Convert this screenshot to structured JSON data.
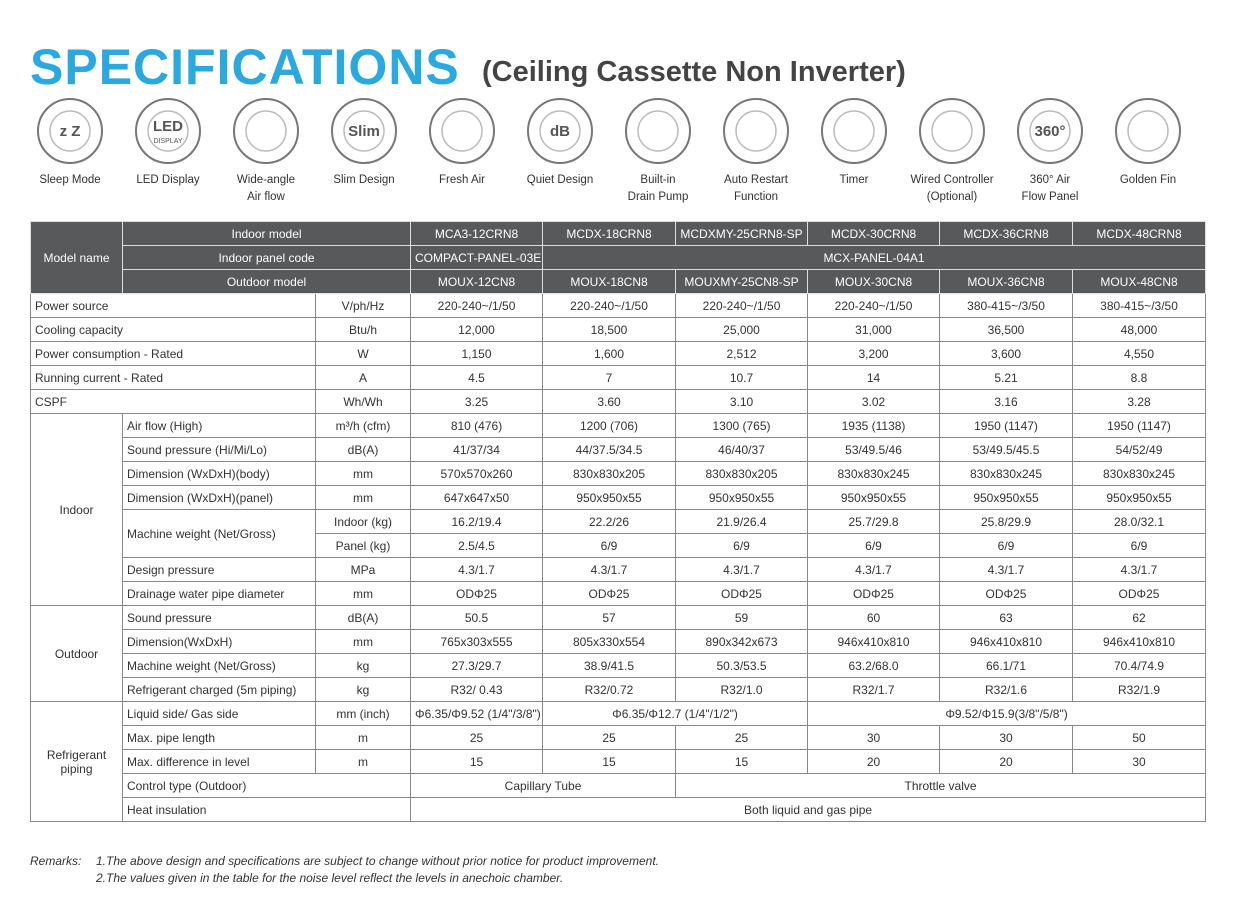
{
  "header": {
    "title": "SPECIFICATIONS",
    "subtitle": "(Ceiling Cassette Non Inverter)"
  },
  "features": [
    {
      "label": "Sleep Mode",
      "icon_text": "z Z"
    },
    {
      "label": "LED Display",
      "icon_text": "LED",
      "icon_subtext": "DISPLAY"
    },
    {
      "label": "Wide-angle\nAir flow"
    },
    {
      "label": "Slim Design",
      "icon_text": "Slim"
    },
    {
      "label": "Fresh Air"
    },
    {
      "label": "Quiet Design",
      "icon_text": "dB"
    },
    {
      "label": "Built-in\nDrain Pump"
    },
    {
      "label": "Auto Restart\nFunction"
    },
    {
      "label": "Timer"
    },
    {
      "label": "Wired Controller\n(Optional)"
    },
    {
      "label": "360° Air\nFlow Panel",
      "icon_text": "360°"
    },
    {
      "label": "Golden Fin"
    }
  ],
  "table": {
    "model_name": "Model name",
    "header_rows": [
      {
        "label": "Indoor model",
        "values": [
          "MCA3-12CRN8",
          "MCDX-18CRN8",
          "MCDXMY-25CRN8-SP",
          "MCDX-30CRN8",
          "MCDX-36CRN8",
          "MCDX-48CRN8"
        ]
      },
      {
        "label": "Indoor panel code",
        "values": [
          "COMPACT-PANEL-03E",
          "MCX-PANEL-04A1"
        ]
      },
      {
        "label": "Outdoor model",
        "values": [
          "MOUX-12CN8",
          "MOUX-18CN8",
          "MOUXMY-25CN8-SP",
          "MOUX-30CN8",
          "MOUX-36CN8",
          "MOUX-48CN8"
        ]
      }
    ],
    "general_rows": [
      {
        "label": "Power source",
        "unit": "V/ph/Hz",
        "values": [
          "220-240~/1/50",
          "220-240~/1/50",
          "220-240~/1/50",
          "220-240~/1/50",
          "380-415~/3/50",
          "380-415~/3/50"
        ]
      },
      {
        "label": "Cooling capacity",
        "unit": "Btu/h",
        "values": [
          "12,000",
          "18,500",
          "25,000",
          "31,000",
          "36,500",
          "48,000"
        ]
      },
      {
        "label": "Power consumption - Rated",
        "unit": "W",
        "values": [
          "1,150",
          "1,600",
          "2,512",
          "3,200",
          "3,600",
          "4,550"
        ]
      },
      {
        "label": "Running current - Rated",
        "unit": "A",
        "values": [
          "4.5",
          "7",
          "10.7",
          "14",
          "5.21",
          "8.8"
        ]
      },
      {
        "label": "CSPF",
        "unit": "Wh/Wh",
        "values": [
          "3.25",
          "3.60",
          "3.10",
          "3.02",
          "3.16",
          "3.28"
        ]
      }
    ],
    "groups": [
      {
        "name": "Indoor",
        "rows": [
          {
            "label": "Air flow (High)",
            "unit": "m³/h (cfm)",
            "values": [
              "810 (476)",
              "1200 (706)",
              "1300 (765)",
              "1935 (1138)",
              "1950 (1147)",
              "1950 (1147)"
            ]
          },
          {
            "label": "Sound pressure (Hi/Mi/Lo)",
            "unit": "dB(A)",
            "values": [
              "41/37/34",
              "44/37.5/34.5",
              "46/40/37",
              "53/49.5/46",
              "53/49.5/45.5",
              "54/52/49"
            ]
          },
          {
            "label": "Dimension (WxDxH)(body)",
            "unit": "mm",
            "values": [
              "570x570x260",
              "830x830x205",
              "830x830x205",
              "830x830x245",
              "830x830x245",
              "830x830x245"
            ]
          },
          {
            "label": "Dimension (WxDxH)(panel)",
            "unit": "mm",
            "values": [
              "647x647x50",
              "950x950x55",
              "950x950x55",
              "950x950x55",
              "950x950x55",
              "950x950x55"
            ]
          },
          {
            "label": "Machine weight (Net/Gross)",
            "subrows": [
              {
                "unit": "Indoor (kg)",
                "values": [
                  "16.2/19.4",
                  "22.2/26",
                  "21.9/26.4",
                  "25.7/29.8",
                  "25.8/29.9",
                  "28.0/32.1"
                ]
              },
              {
                "unit": "Panel (kg)",
                "values": [
                  "2.5/4.5",
                  "6/9",
                  "6/9",
                  "6/9",
                  "6/9",
                  "6/9"
                ]
              }
            ]
          },
          {
            "label": "Design pressure",
            "unit": "MPa",
            "values": [
              "4.3/1.7",
              "4.3/1.7",
              "4.3/1.7",
              "4.3/1.7",
              "4.3/1.7",
              "4.3/1.7"
            ]
          },
          {
            "label": "Drainage water pipe diameter",
            "unit": "mm",
            "values": [
              "ODΦ25",
              "ODΦ25",
              "ODΦ25",
              "ODΦ25",
              "ODΦ25",
              "ODΦ25"
            ]
          }
        ]
      },
      {
        "name": "Outdoor",
        "rows": [
          {
            "label": "Sound pressure",
            "unit": "dB(A)",
            "values": [
              "50.5",
              "57",
              "59",
              "60",
              "63",
              "62"
            ]
          },
          {
            "label": "Dimension(WxDxH)",
            "unit": "mm",
            "values": [
              "765x303x555",
              "805x330x554",
              "890x342x673",
              "946x410x810",
              "946x410x810",
              "946x410x810"
            ]
          },
          {
            "label": "Machine weight (Net/Gross)",
            "unit": "kg",
            "values": [
              "27.3/29.7",
              "38.9/41.5",
              "50.3/53.5",
              "63.2/68.0",
              "66.1/71",
              "70.4/74.9"
            ]
          },
          {
            "label": "Refrigerant charged (5m piping)",
            "unit": "kg",
            "values": [
              "R32/ 0.43",
              "R32/0.72",
              "R32/1.0",
              "R32/1.7",
              "R32/1.6",
              "R32/1.9"
            ]
          }
        ]
      },
      {
        "name": "Refrigerant\npiping",
        "rows": [
          {
            "label": "Liquid side/ Gas side",
            "unit": "mm (inch)",
            "values": [
              "Φ6.35/Φ9.52 (1/4\"/3/8\")",
              "Φ6.35/Φ12.7 (1/4\"/1/2\")",
              "Φ9.52/Φ15.9(3/8\"/5/8\")"
            ]
          },
          {
            "label": "Max. pipe length",
            "unit": "m",
            "values": [
              "25",
              "25",
              "25",
              "30",
              "30",
              "50"
            ]
          },
          {
            "label": "Max. difference in level",
            "unit": "m",
            "values": [
              "15",
              "15",
              "15",
              "20",
              "20",
              "30"
            ]
          },
          {
            "label": "Control type (Outdoor)",
            "values": [
              "Capillary Tube",
              "Throttle valve"
            ]
          },
          {
            "label": "Heat insulation",
            "values": [
              "Both liquid and gas pipe"
            ]
          }
        ]
      }
    ]
  },
  "remarks": {
    "label": "Remarks:",
    "items": [
      "1.The above design and specifications are subject to change without prior notice for product improvement.",
      "2.The values given in the table for the noise level reflect the levels in anechoic chamber."
    ]
  }
}
